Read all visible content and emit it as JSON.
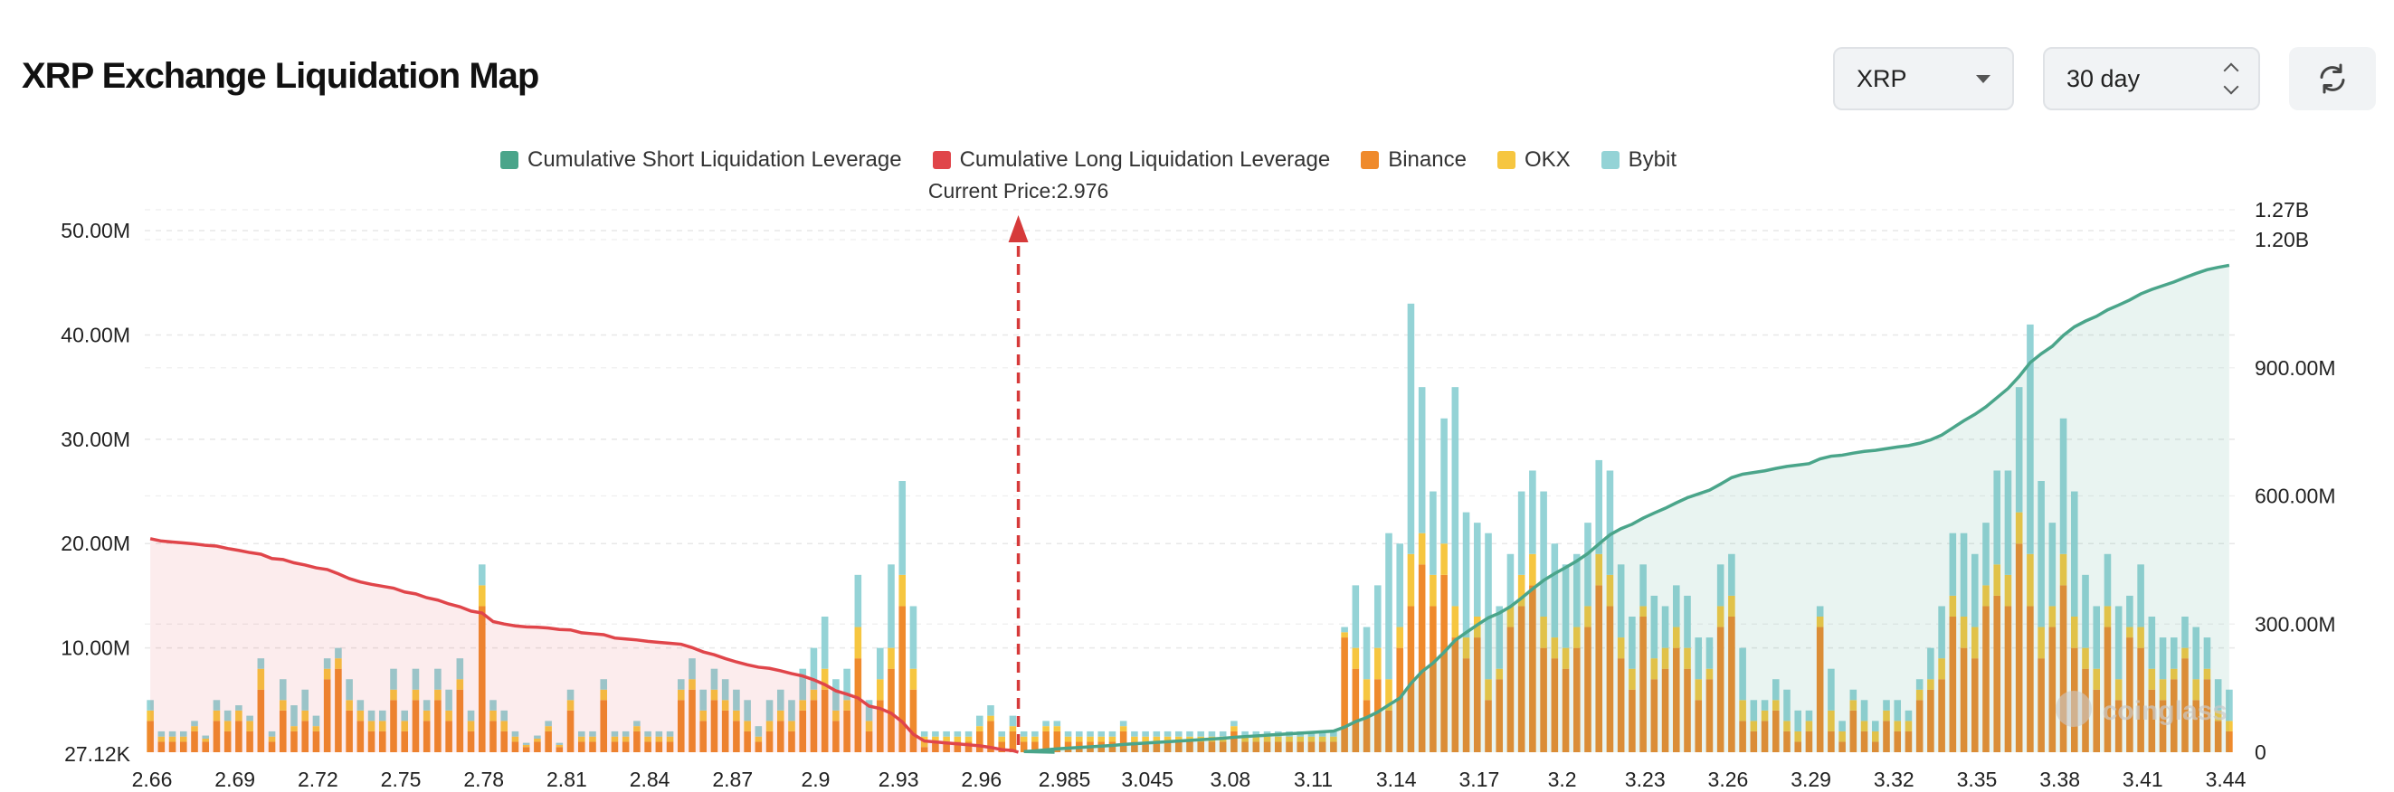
{
  "header": {
    "title": "XRP Exchange Liquidation Map",
    "coin_select": "XRP",
    "range_select": "30 day",
    "refresh_icon": "refresh-icon"
  },
  "legend": [
    {
      "label": "Cumulative Short Liquidation Leverage",
      "color": "#4aa58a"
    },
    {
      "label": "Cumulative Long Liquidation Leverage",
      "color": "#e0454a"
    },
    {
      "label": "Binance",
      "color": "#ef8a2c"
    },
    {
      "label": "OKX",
      "color": "#f6c640"
    },
    {
      "label": "Bybit",
      "color": "#94d3d6"
    }
  ],
  "chart_data": {
    "type": "bar",
    "current_price_label": "Current Price:2.976",
    "current_price": 2.976,
    "x_tick_labels": [
      "2.66",
      "2.69",
      "2.72",
      "2.75",
      "2.78",
      "2.81",
      "2.84",
      "2.87",
      "2.9",
      "2.93",
      "2.96",
      "2.985",
      "3.045",
      "3.08",
      "3.11",
      "3.14",
      "3.17",
      "3.2",
      "3.23",
      "3.26",
      "3.29",
      "3.32",
      "3.35",
      "3.38",
      "3.41",
      "3.44"
    ],
    "left_axis_labels": [
      "27.12K",
      "10.00M",
      "20.00M",
      "30.00M",
      "40.00M",
      "50.00M"
    ],
    "left_axis_values": [
      0,
      10,
      20,
      30,
      40,
      50
    ],
    "right_axis_labels": [
      "0",
      "300.00M",
      "600.00M",
      "900.00M",
      "1.20B",
      "1.27B"
    ],
    "right_axis_values": [
      0,
      300,
      600,
      900,
      1200,
      1270
    ],
    "left_ylim": [
      0,
      52
    ],
    "right_ylim": [
      0,
      1270
    ],
    "units_left": "M",
    "units_right": "M",
    "grid": true,
    "watermark": "coinglass",
    "series": [
      {
        "name": "Binance",
        "values": [
          3,
          1,
          1,
          1,
          2,
          1,
          3,
          2,
          3,
          2,
          6,
          1,
          4,
          2,
          3,
          2,
          7,
          8,
          4,
          3,
          2,
          2,
          5,
          2,
          5,
          3,
          5,
          3,
          6,
          2,
          14,
          3,
          2,
          1,
          0.5,
          1,
          2,
          0.5,
          4,
          1,
          1,
          5,
          1,
          1,
          2,
          1,
          1,
          1,
          5,
          6,
          3,
          5,
          4,
          3,
          2,
          1,
          2,
          3,
          2,
          4,
          5,
          6,
          3,
          4,
          9,
          2,
          5,
          8,
          14,
          6,
          0.5,
          1,
          1,
          1,
          1,
          2,
          3,
          1,
          2,
          1,
          1,
          2,
          2,
          1,
          1,
          1,
          1,
          1,
          2,
          1,
          1,
          1,
          1,
          1,
          1,
          1,
          1,
          1,
          2,
          1,
          1,
          1,
          1,
          1,
          1,
          1,
          1,
          1,
          11,
          8,
          5,
          7,
          4,
          10,
          14,
          18,
          14,
          17,
          11,
          9,
          11,
          5,
          7,
          12,
          14,
          16,
          10,
          9,
          8,
          10,
          12,
          16,
          14,
          9,
          6,
          13,
          7,
          8,
          10,
          8,
          5,
          7,
          12,
          13,
          3,
          2,
          3,
          4,
          2,
          1,
          2,
          12,
          2,
          1,
          4,
          2,
          1,
          3,
          2,
          2,
          5,
          6,
          7,
          13,
          10,
          9,
          14,
          15,
          14,
          20,
          14,
          9,
          12,
          16,
          10,
          8,
          6,
          12,
          5,
          11,
          10,
          6,
          5,
          7,
          9,
          5,
          7,
          3,
          2
        ],
        "color": "#ef8a2c"
      },
      {
        "name": "OKX",
        "values": [
          1,
          0.5,
          0.5,
          0.5,
          0.5,
          0.3,
          1,
          1,
          1,
          1,
          2,
          0.5,
          1,
          0.5,
          1,
          0.5,
          1,
          1,
          1,
          1,
          1,
          1,
          1,
          1,
          1,
          1,
          1,
          1,
          1,
          1,
          2,
          1,
          1,
          0.5,
          0.2,
          0.3,
          0.5,
          0.2,
          1,
          0.5,
          0.5,
          1,
          0.5,
          0.5,
          0.5,
          0.5,
          0.5,
          0.5,
          1,
          1,
          1,
          1,
          1,
          1,
          1,
          0.5,
          1,
          1,
          1,
          1,
          1,
          2,
          1,
          1,
          3,
          1,
          2,
          2,
          3,
          2,
          1,
          0.5,
          0.5,
          0.5,
          0.5,
          0.5,
          0.5,
          0.5,
          0.5,
          0.5,
          0.5,
          0.5,
          0.5,
          0.5,
          0.5,
          0.5,
          0.5,
          0.5,
          0.5,
          0.5,
          0.5,
          0.5,
          0.5,
          0.5,
          0.5,
          0.5,
          0.5,
          0.5,
          0.5,
          0.5,
          0.5,
          0.5,
          0.5,
          0.5,
          0.5,
          0.5,
          0.5,
          0.5,
          0.5,
          2,
          2,
          3,
          3,
          2,
          5,
          3,
          3,
          3,
          3,
          2,
          2,
          2,
          1,
          2,
          3,
          3,
          3,
          2,
          2,
          2,
          2,
          3,
          3,
          2,
          2,
          1,
          2,
          2,
          2,
          2,
          2,
          1,
          2,
          2,
          2,
          1,
          1,
          1,
          1,
          1,
          1,
          1,
          2,
          1,
          1,
          1,
          1,
          1,
          1,
          1,
          1,
          1,
          2,
          2,
          3,
          3,
          2,
          3,
          3,
          3,
          5,
          3,
          2,
          3,
          3,
          2,
          2,
          2,
          2,
          1,
          2,
          2,
          2,
          1,
          1,
          2,
          1,
          1,
          1,
          1
        ],
        "color": "#f6c640"
      },
      {
        "name": "Bybit",
        "values": [
          1,
          0.5,
          0.5,
          0.5,
          0.5,
          0.3,
          1,
          1,
          0.5,
          0.5,
          1,
          0.5,
          2,
          2,
          2,
          1,
          1,
          1,
          2,
          1,
          1,
          1,
          2,
          1,
          2,
          1,
          2,
          2,
          2,
          1,
          2,
          1,
          1,
          0.5,
          0.2,
          0.3,
          0.5,
          0.2,
          1,
          0.5,
          0.5,
          1,
          0.5,
          0.5,
          0.5,
          0.5,
          0.5,
          0.5,
          1,
          2,
          2,
          2,
          2,
          2,
          2,
          1,
          2,
          2,
          2,
          3,
          4,
          5,
          3,
          3,
          5,
          2,
          3,
          8,
          9,
          6,
          0.5,
          0.5,
          0.5,
          0.5,
          0.5,
          1,
          1,
          0.5,
          1,
          0.5,
          0.5,
          0.5,
          0.5,
          0.5,
          0.5,
          0.5,
          0.5,
          0.5,
          0.5,
          0.5,
          0.5,
          0.5,
          0.5,
          0.5,
          0.5,
          0.5,
          0.5,
          0.5,
          0.5,
          0.5,
          0.5,
          0.5,
          0.5,
          0.5,
          0.5,
          0.5,
          0.5,
          0.5,
          0.5,
          6,
          5,
          6,
          14,
          8,
          24,
          14,
          8,
          12,
          21,
          12,
          9,
          14,
          6,
          5,
          8,
          8,
          12,
          9,
          8,
          7,
          8,
          9,
          10,
          7,
          5,
          4,
          6,
          4,
          4,
          5,
          4,
          3,
          4,
          4,
          5,
          2,
          1,
          2,
          3,
          2,
          1,
          1,
          4,
          1,
          1,
          2,
          1,
          1,
          2,
          1,
          1,
          3,
          5,
          6,
          8,
          7,
          6,
          9,
          10,
          12,
          22,
          14,
          8,
          13,
          12,
          7,
          6,
          5,
          7,
          3,
          6,
          5,
          4,
          3,
          3,
          5,
          3,
          3,
          3,
          3
        ],
        "color": "#94d3d6"
      }
    ],
    "cumulative_long": {
      "name": "Cumulative Long Liquidation Leverage",
      "start": 500,
      "color": "#e0454a"
    },
    "cumulative_short": {
      "name": "Cumulative Short Liquidation Leverage",
      "end": 1140,
      "color": "#4aa58a"
    }
  }
}
